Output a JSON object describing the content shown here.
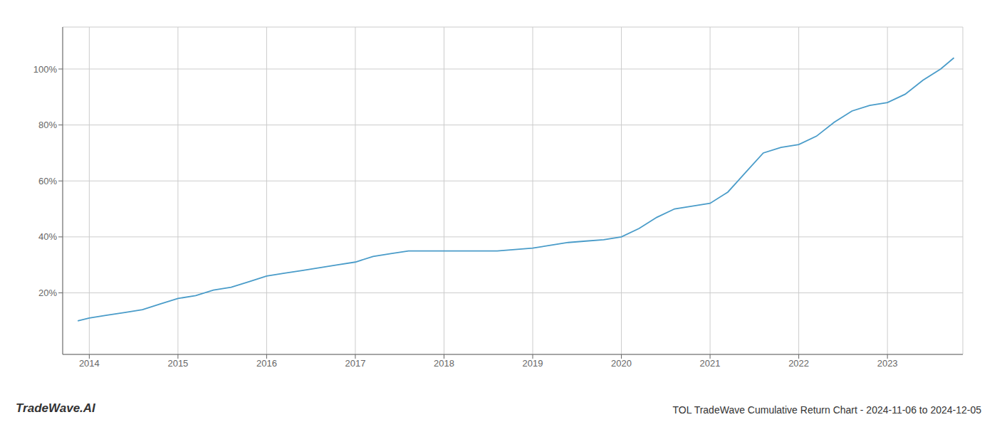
{
  "chart_data": {
    "type": "line",
    "title": "TOL TradeWave Cumulative Return Chart - 2024-11-06 to 2024-12-05",
    "annotations": [
      "TradeWave.AI"
    ],
    "color": "#4a9cc9",
    "x": [
      2013.87,
      2014.0,
      2014.2,
      2014.4,
      2014.6,
      2014.8,
      2015.0,
      2015.2,
      2015.4,
      2015.6,
      2015.8,
      2016.0,
      2016.2,
      2016.4,
      2016.6,
      2016.8,
      2017.0,
      2017.2,
      2017.4,
      2017.6,
      2017.8,
      2018.0,
      2018.2,
      2018.4,
      2018.6,
      2018.8,
      2019.0,
      2019.2,
      2019.4,
      2019.6,
      2019.8,
      2020.0,
      2020.2,
      2020.4,
      2020.6,
      2020.8,
      2021.0,
      2021.2,
      2021.4,
      2021.6,
      2021.8,
      2022.0,
      2022.2,
      2022.4,
      2022.6,
      2022.8,
      2023.0,
      2023.2,
      2023.4,
      2023.6,
      2023.75
    ],
    "values": [
      10,
      11,
      12,
      13,
      14,
      16,
      18,
      19,
      21,
      22,
      24,
      26,
      27,
      28,
      29,
      30,
      31,
      33,
      34,
      35,
      35,
      35,
      35,
      35,
      35,
      35.5,
      36,
      37,
      38,
      38.5,
      39,
      40,
      43,
      47,
      50,
      51,
      52,
      56,
      63,
      70,
      72,
      73,
      76,
      81,
      85,
      87,
      88,
      91,
      96,
      100,
      104
    ],
    "xlim": [
      2013.7,
      2023.85
    ],
    "ylim": [
      -2,
      115
    ],
    "xticks": [
      2014,
      2015,
      2016,
      2017,
      2018,
      2019,
      2020,
      2021,
      2022,
      2023
    ],
    "yticks": [
      {
        "value": 20,
        "label": "20%"
      },
      {
        "value": 40,
        "label": "40%"
      },
      {
        "value": 60,
        "label": "60%"
      },
      {
        "value": 80,
        "label": "80%"
      },
      {
        "value": 100,
        "label": "100%"
      }
    ],
    "grid": true
  }
}
